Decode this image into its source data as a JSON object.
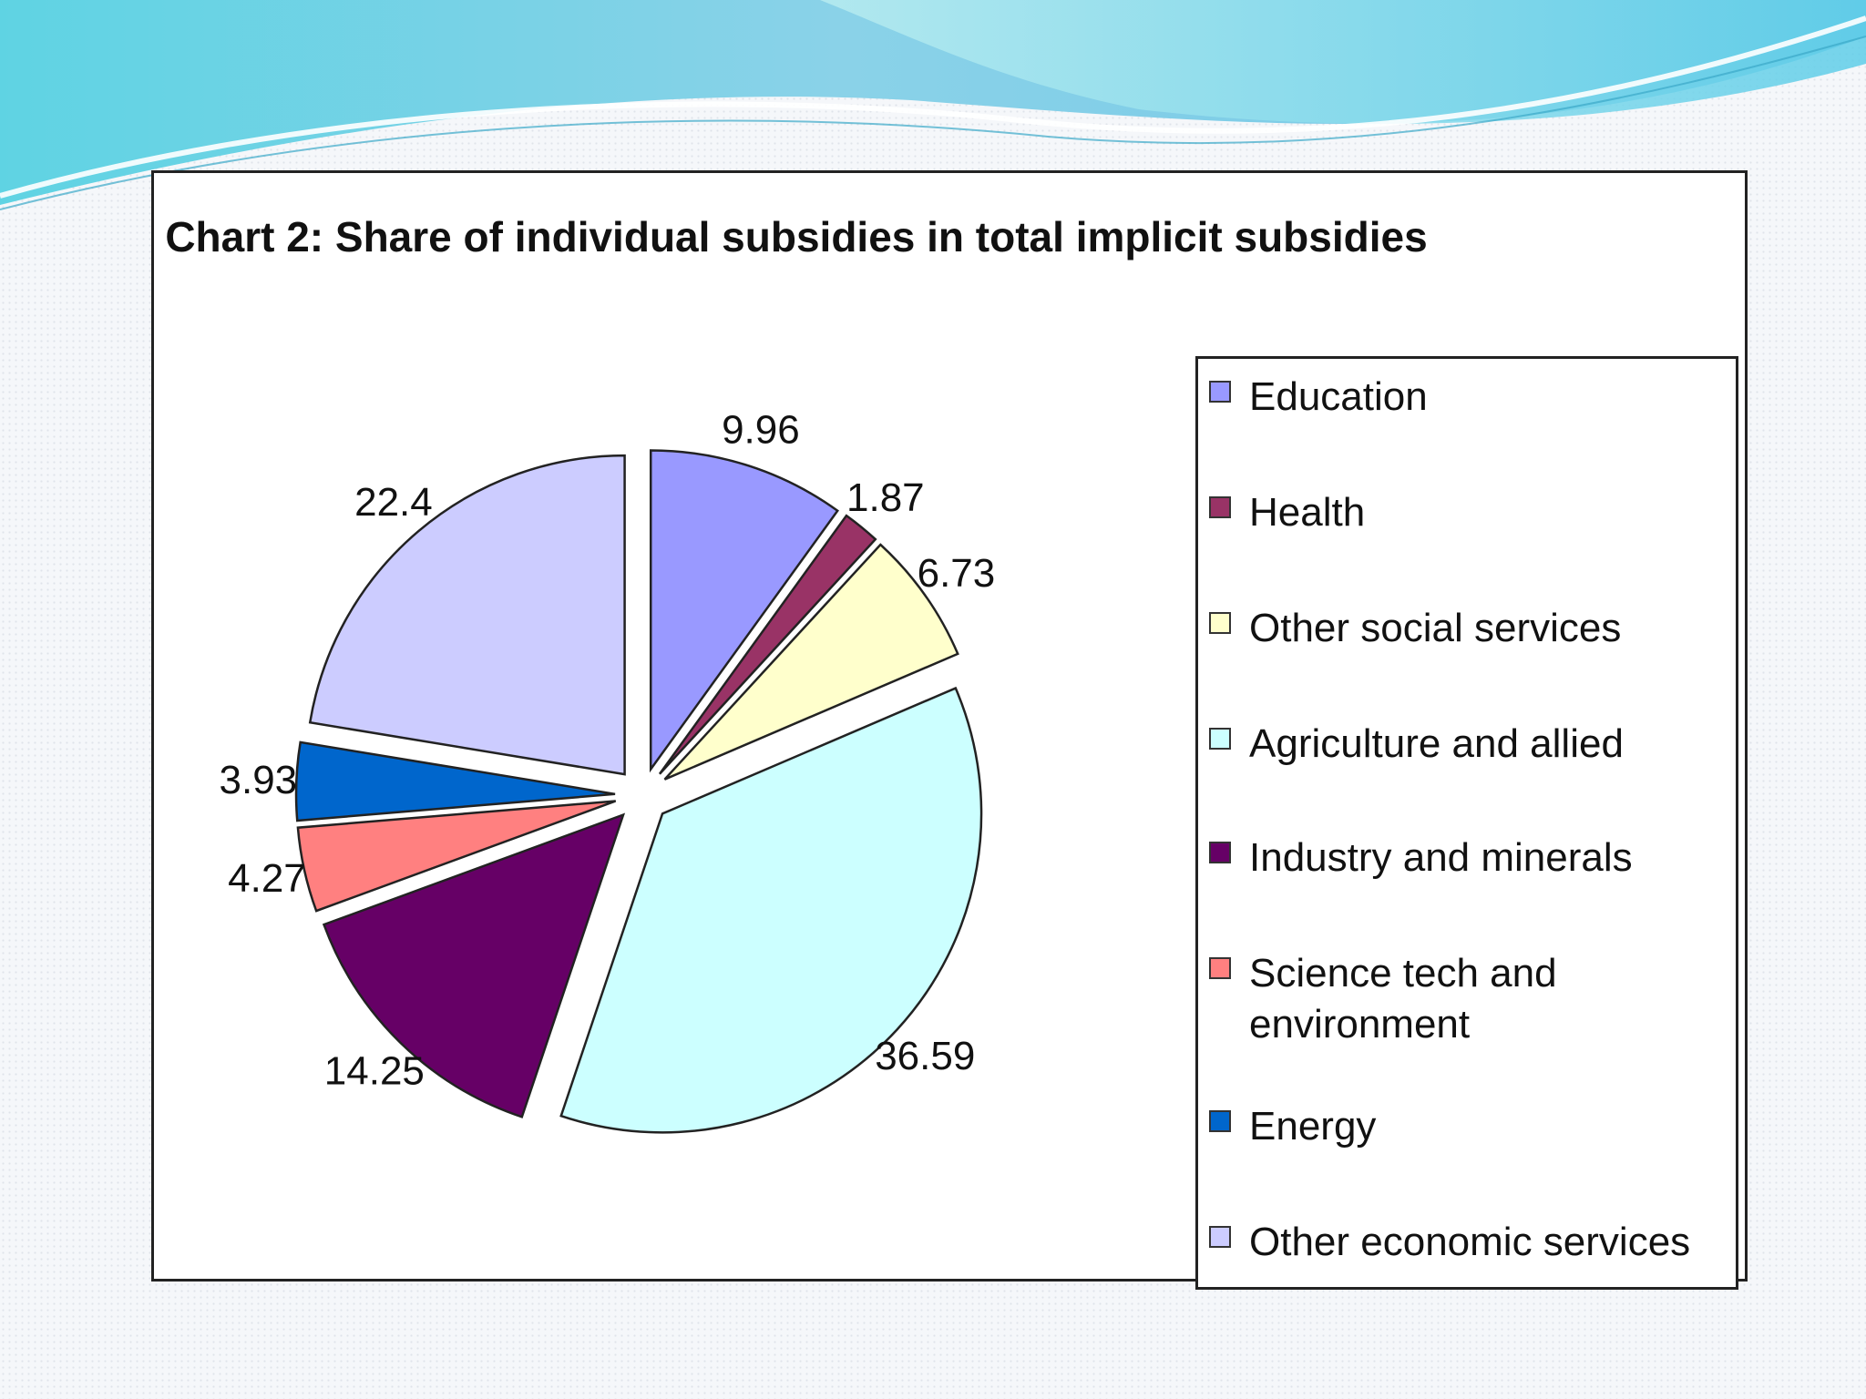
{
  "chart_data": {
    "type": "pie",
    "title": "Chart 2: Share of individual subsidies in total implicit subsidies",
    "categories": [
      "Education",
      "Health",
      "Other social services",
      "Agriculture and allied",
      "Industry and minerals",
      "Science tech and environment",
      "Energy",
      "Other economic services"
    ],
    "values": [
      9.96,
      1.87,
      6.73,
      36.59,
      14.25,
      4.27,
      3.93,
      22.4
    ],
    "value_labels": [
      "9.96",
      "1.87",
      "6.73",
      "36.59",
      "14.25",
      "4.27",
      "3.93",
      "22.4"
    ],
    "colors": [
      "#9999ff",
      "#993366",
      "#ffffcc",
      "#ccffff",
      "#660066",
      "#ff8080",
      "#0066cc",
      "#ccccff"
    ],
    "exploded": true,
    "legend_position": "right"
  }
}
